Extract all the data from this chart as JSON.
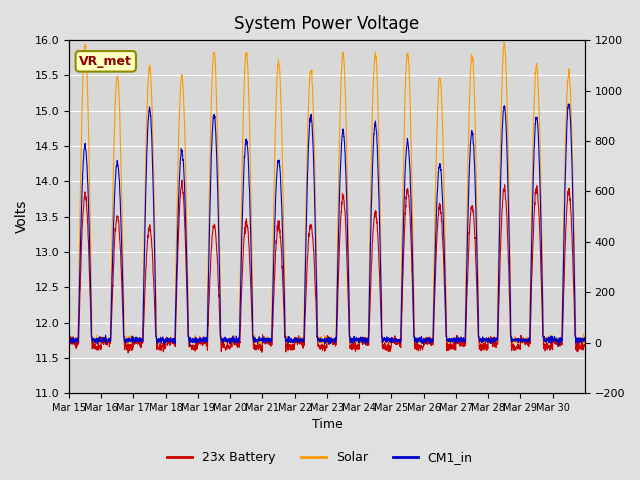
{
  "title": "System Power Voltage",
  "xlabel": "Time",
  "ylabel_left": "Volts",
  "ylim_left": [
    11.0,
    16.0
  ],
  "ylim_right": [
    -200,
    1200
  ],
  "left_yticks": [
    11.0,
    11.5,
    12.0,
    12.5,
    13.0,
    13.5,
    14.0,
    14.5,
    15.0,
    15.5,
    16.0
  ],
  "right_yticks": [
    -200,
    0,
    200,
    400,
    600,
    800,
    1000,
    1200
  ],
  "annotation_text": "VR_met",
  "annotation_color": "#8b0000",
  "annotation_bg": "#ffffc0",
  "annotation_border": "#8b8b00",
  "line_colors": {
    "battery": "#cc0000",
    "solar": "#ff9900",
    "cm1": "#0000cc"
  },
  "legend_labels": [
    "23x Battery",
    "Solar",
    "CM1_in"
  ],
  "x_tick_labels": [
    "Mar 15",
    "Mar 16",
    "Mar 17",
    "Mar 18",
    "Mar 19",
    "Mar 20",
    "Mar 21",
    "Mar 22",
    "Mar 23",
    "Mar 24",
    "Mar 25",
    "Mar 26",
    "Mar 27",
    "Mar 28",
    "Mar 29",
    "Mar 30"
  ],
  "num_days": 16
}
